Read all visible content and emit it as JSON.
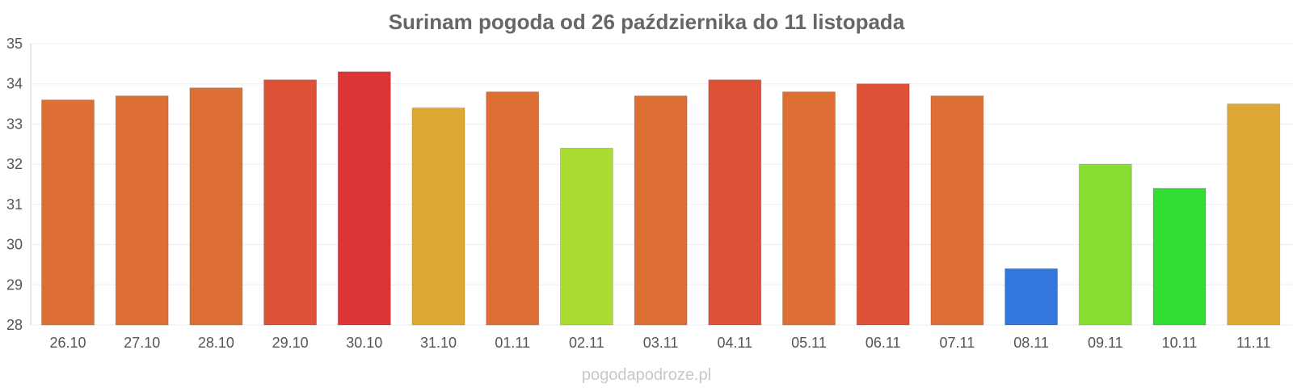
{
  "chart_data": {
    "type": "bar",
    "title": "Surinam pogoda od 26 października do 11 listopada",
    "xlabel": "",
    "ylabel": "",
    "ylim": [
      28,
      35
    ],
    "yticks": [
      28,
      29,
      30,
      31,
      32,
      33,
      34,
      35
    ],
    "grid": true,
    "legend": "none",
    "categories": [
      "26.10",
      "27.10",
      "28.10",
      "29.10",
      "30.10",
      "31.10",
      "01.11",
      "02.11",
      "03.11",
      "04.11",
      "05.11",
      "06.11",
      "07.11",
      "08.11",
      "09.11",
      "10.11",
      "11.11"
    ],
    "values": [
      33.6,
      33.7,
      33.9,
      34.1,
      34.3,
      33.4,
      33.8,
      32.4,
      33.7,
      34.1,
      33.8,
      34.0,
      33.7,
      29.4,
      32.0,
      31.4,
      33.5
    ],
    "colors": [
      "#de6f34",
      "#de6f34",
      "#de6f34",
      "#dd5236",
      "#db3535",
      "#dda834",
      "#de6f34",
      "#a9dd32",
      "#de6f34",
      "#dd5236",
      "#de6f34",
      "#dd5236",
      "#de6f34",
      "#3377dd",
      "#88dd33",
      "#33dd33",
      "#dda834"
    ]
  },
  "footer": {
    "watermark": "pogodapodroze.pl"
  }
}
